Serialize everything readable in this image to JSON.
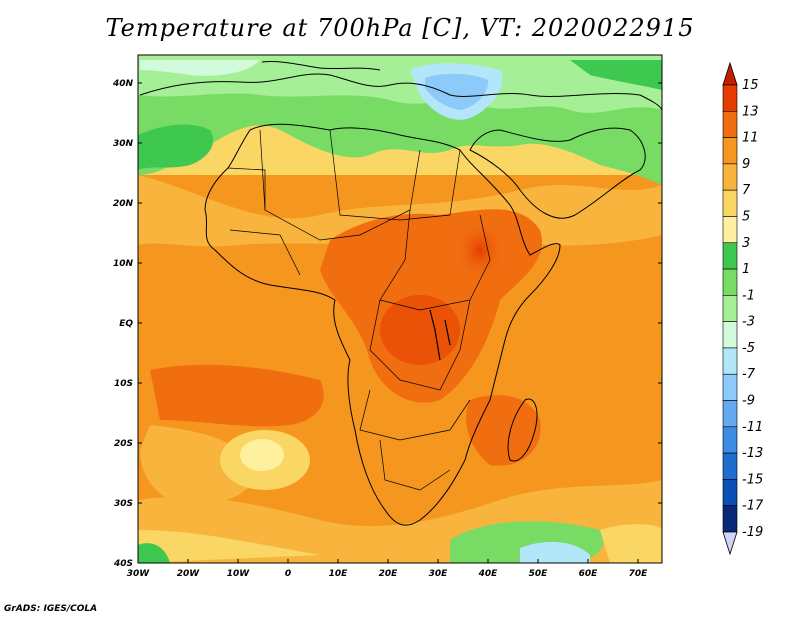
{
  "title": "Temperature at 700hPa [C], VT: 2020022915",
  "credit": "GrADS: IGES/COLA",
  "lat_labels": [
    "40N",
    "30N",
    "20N",
    "10N",
    "EQ",
    "10S",
    "20S",
    "30S",
    "40S"
  ],
  "lon_labels": [
    "30W",
    "20W",
    "10W",
    "0",
    "10E",
    "20E",
    "30E",
    "40E",
    "50E",
    "60E",
    "70E"
  ],
  "colorbar": {
    "labels": [
      "15",
      "13",
      "11",
      "9",
      "7",
      "5",
      "3",
      "1",
      "-1",
      "-3",
      "-5",
      "-7",
      "-9",
      "-11",
      "-13",
      "-15",
      "-17",
      "-19"
    ],
    "colors": [
      "#c81e00",
      "#e63c00",
      "#f06e10",
      "#f5961e",
      "#f8b43c",
      "#fad764",
      "#fff0a0",
      "#3ec850",
      "#78dc64",
      "#a5f096",
      "#d2fadc",
      "#b4e6fa",
      "#8ccafa",
      "#64aaf0",
      "#3c8ce6",
      "#1e6ed2",
      "#0a50b4",
      "#0a2878",
      "#d2d2fa"
    ]
  }
}
